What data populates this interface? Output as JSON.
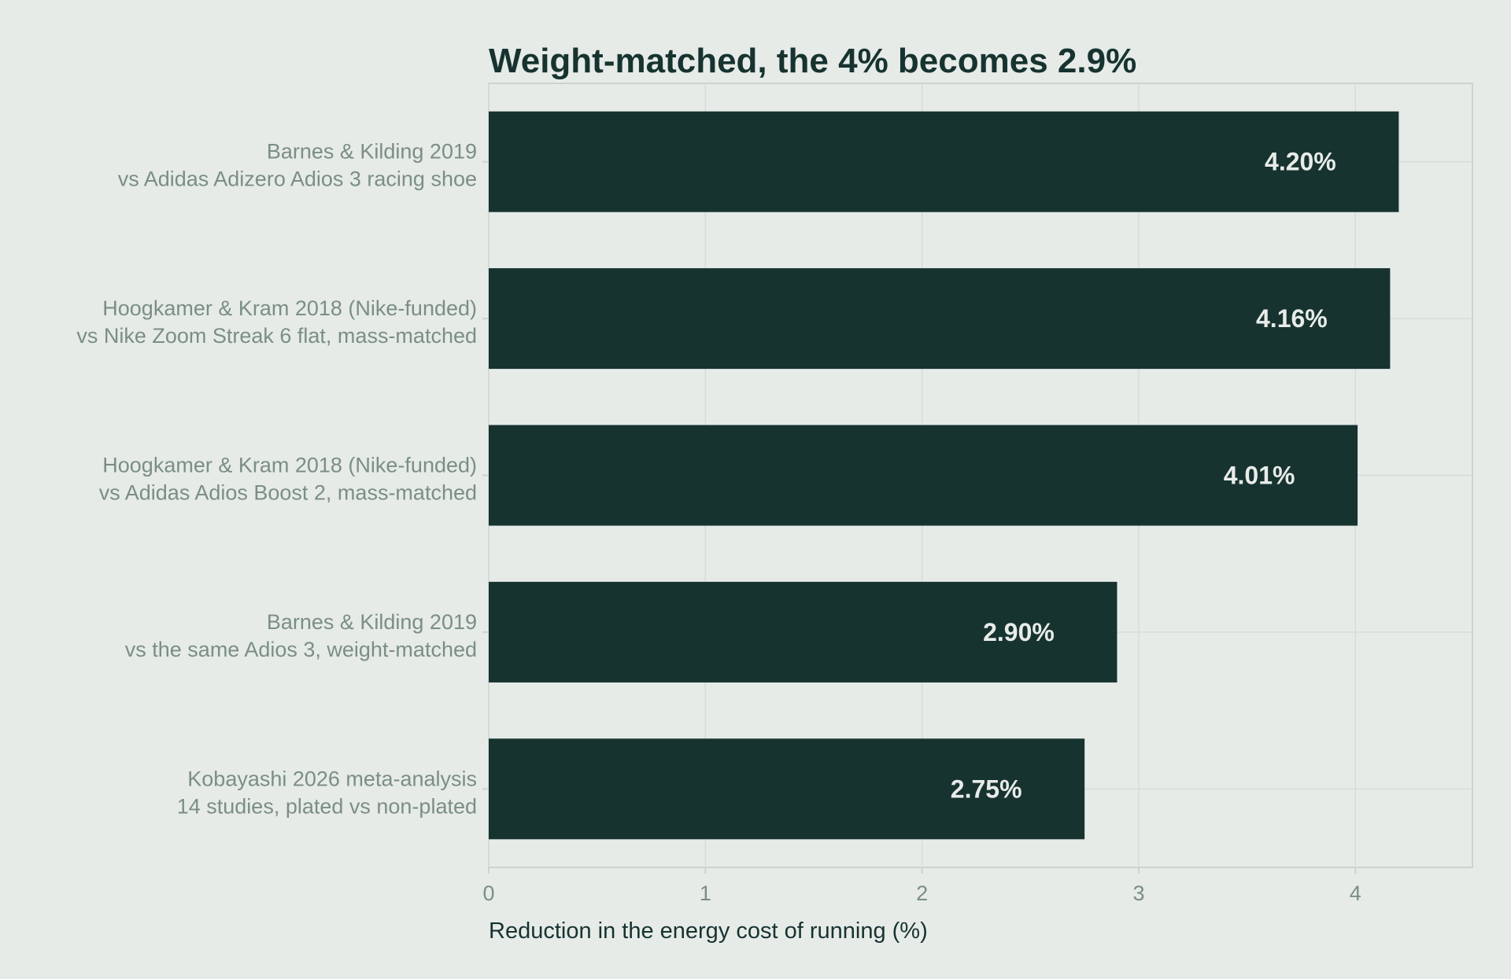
{
  "chart_data": {
    "type": "bar",
    "orientation": "horizontal",
    "title": "Weight-matched, the 4% becomes 2.9%",
    "xlabel": "Reduction in the energy cost of running (%)",
    "ylabel": "",
    "xlim": [
      0,
      4.54
    ],
    "xticks": [
      "0",
      "1",
      "2",
      "3",
      "4"
    ],
    "grid": true,
    "legend": "none",
    "categories": [
      [
        "Barnes & Kilding 2019",
        "vs Adidas Adizero Adios 3 racing shoe"
      ],
      [
        "Hoogkamer & Kram 2018 (Nike-funded)",
        "vs Nike Zoom Streak 6 flat, mass-matched"
      ],
      [
        "Hoogkamer & Kram 2018 (Nike-funded)",
        "vs Adidas Adios Boost 2, mass-matched"
      ],
      [
        "Barnes & Kilding 2019",
        "vs the same Adios 3, weight-matched"
      ],
      [
        "Kobayashi 2026 meta-analysis",
        "14 studies, plated vs non-plated"
      ]
    ],
    "values": [
      4.2,
      4.16,
      4.01,
      2.9,
      2.75
    ],
    "data_labels": [
      "4.20%",
      "4.16%",
      "4.01%",
      "2.90%",
      "2.75%"
    ],
    "colors": {
      "background": "#e6ebe8",
      "bar": "#173330",
      "bar_label": "#e8ece9",
      "category_text": "#7b8e86",
      "title_text": "#173330",
      "grid": "#d6dcd9",
      "frame": "#ccd3cf"
    }
  }
}
